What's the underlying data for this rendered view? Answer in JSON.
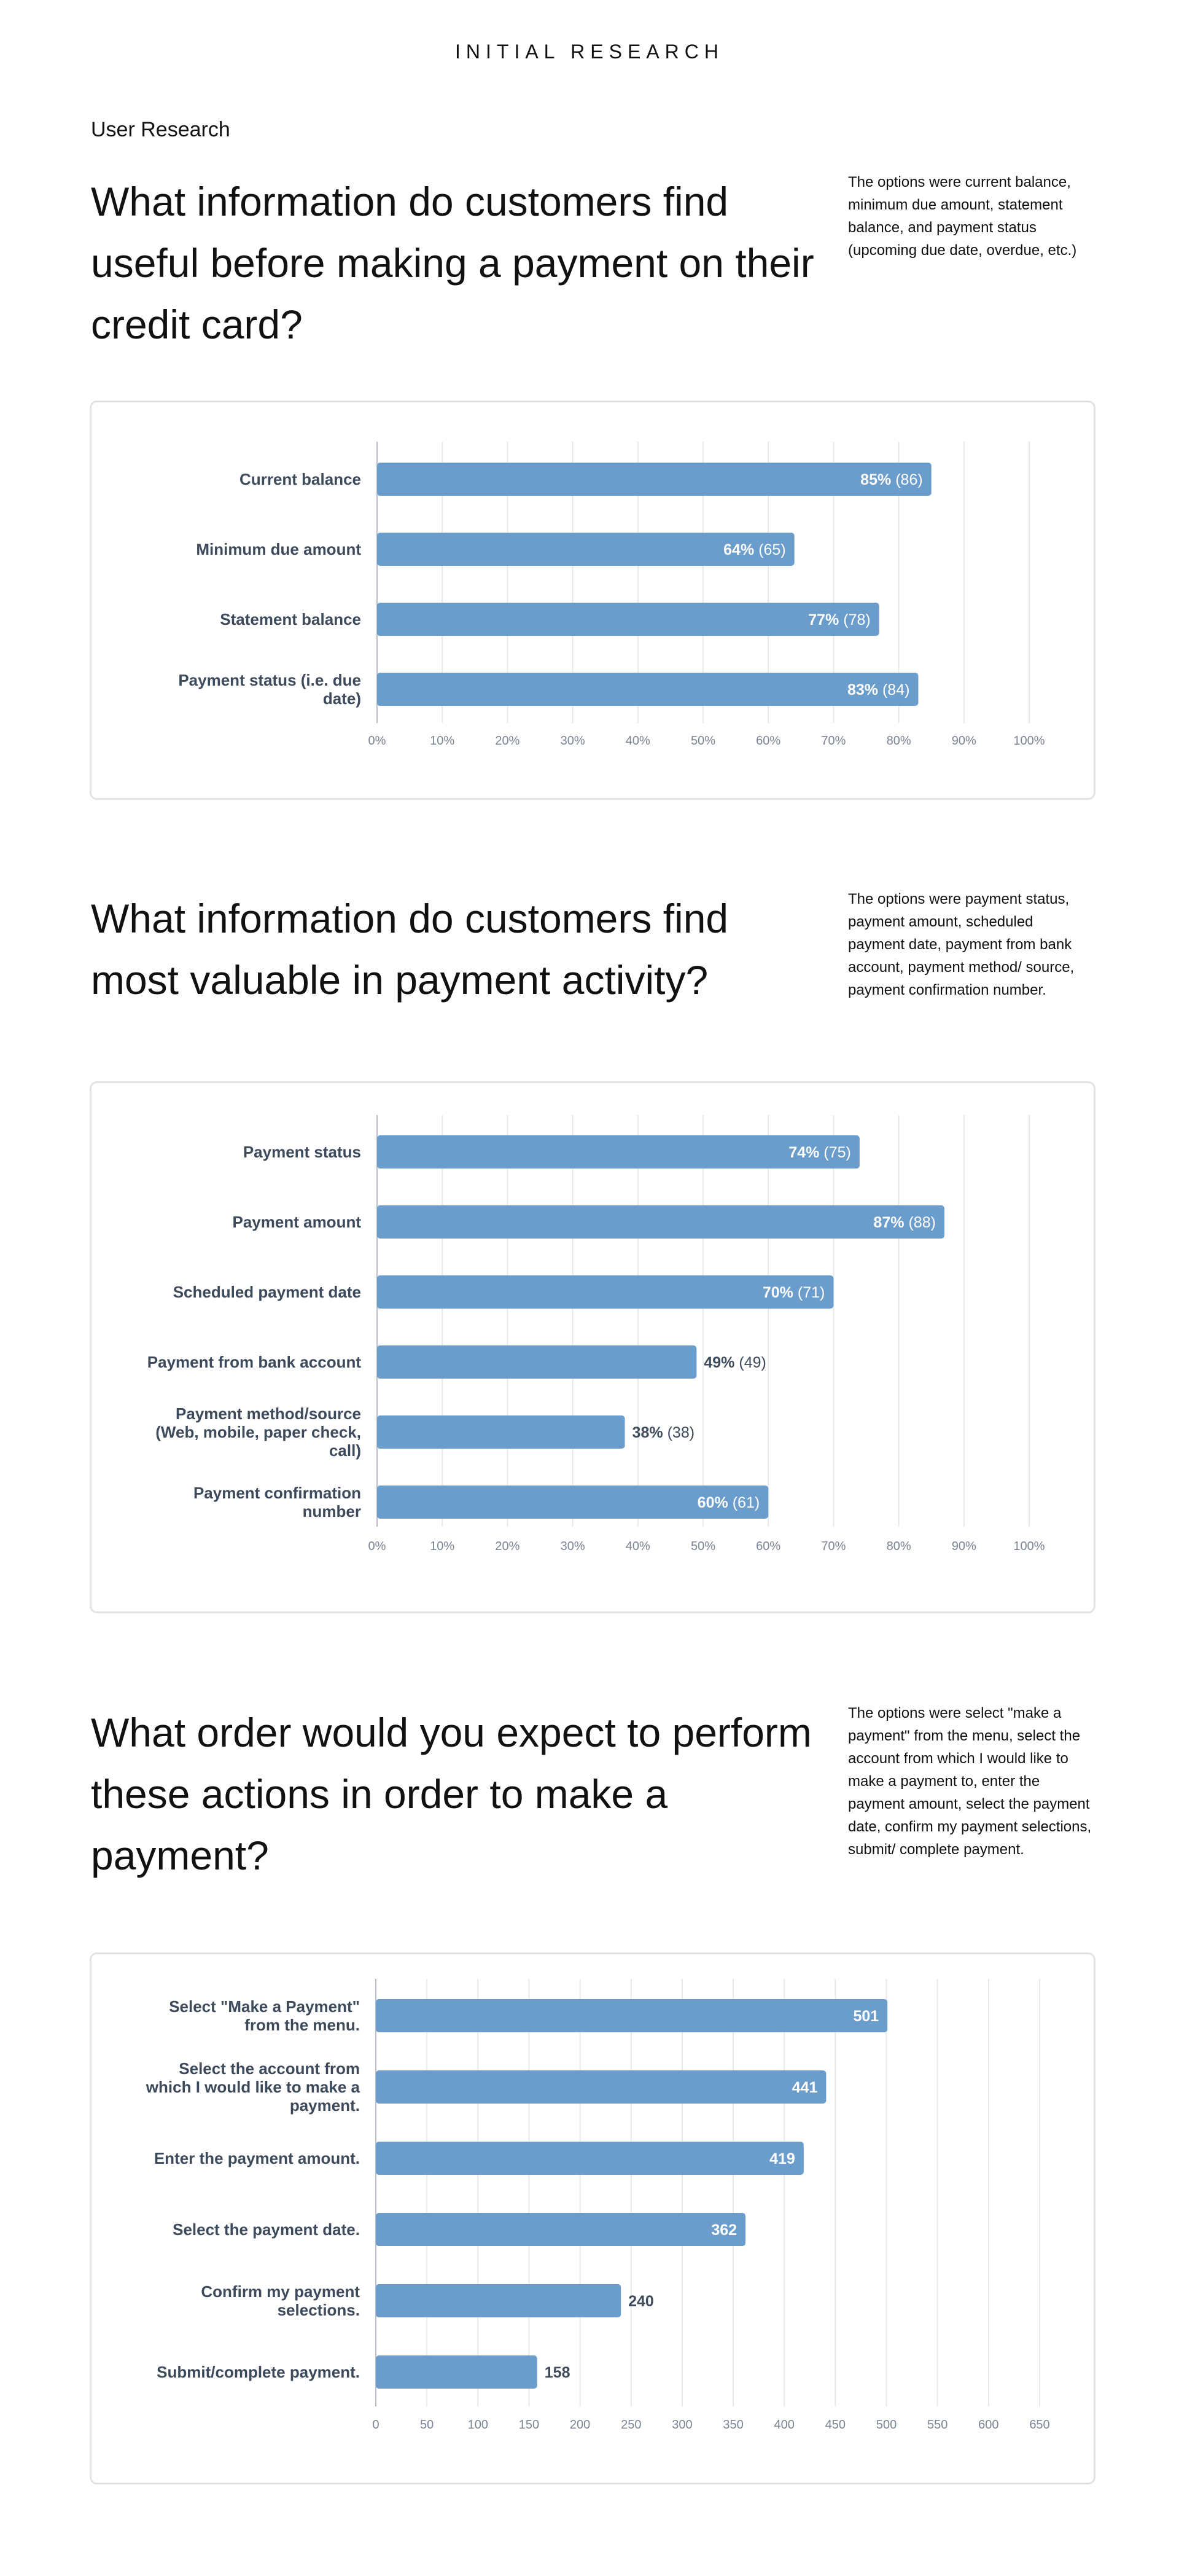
{
  "header": {
    "title": "INITIAL RESEARCH"
  },
  "section_label": "User Research",
  "questions": [
    {
      "title": "What information do customers find useful before making a payment on their credit card?",
      "note": "The options were current balance, minimum due amount, statement balance, and payment status (upcoming due date, overdue, etc.)"
    },
    {
      "title": "What information do customers find most valuable in payment activity?",
      "note": "The options were payment status, payment amount, scheduled payment date, payment from bank account, payment method/ source, payment confirmation number."
    },
    {
      "title": "What order would you expect to perform these actions in order to make a payment?",
      "note": "The options were select \"make a payment\" from the menu, select the account from which I would like to make a payment to, enter the payment amount, select the payment date, confirm my payment selections, submit/ complete payment."
    }
  ],
  "colors": {
    "bar": "#6a9dcc",
    "grid": "#e6e8eb",
    "axis": "#b9bec6",
    "label": "#3d4a5c",
    "tick": "#7b8494"
  },
  "chart_data": [
    {
      "type": "bar",
      "orientation": "horizontal",
      "categories": [
        [
          "Current balance"
        ],
        [
          "Minimum due amount"
        ],
        [
          "Statement balance"
        ],
        [
          "Payment status (i.e. due",
          "date)"
        ]
      ],
      "values": [
        85,
        64,
        77,
        83
      ],
      "counts": [
        86,
        65,
        78,
        84
      ],
      "value_labels": [
        "85%",
        "64%",
        "77%",
        "83%"
      ],
      "count_labels": [
        "(86)",
        "(65)",
        "(78)",
        "(84)"
      ],
      "xlim": [
        0,
        100
      ],
      "ticks": [
        0,
        10,
        20,
        30,
        40,
        50,
        60,
        70,
        80,
        90,
        100
      ],
      "tick_labels": [
        "0%",
        "10%",
        "20%",
        "30%",
        "40%",
        "50%",
        "60%",
        "70%",
        "80%",
        "90%",
        "100%"
      ],
      "grid": true
    },
    {
      "type": "bar",
      "orientation": "horizontal",
      "categories": [
        [
          "Payment status"
        ],
        [
          "Payment amount"
        ],
        [
          "Scheduled payment date"
        ],
        [
          "Payment from bank account"
        ],
        [
          "Payment method/source",
          "(Web, mobile, paper check,",
          "call)"
        ],
        [
          "Payment confirmation",
          "number"
        ]
      ],
      "values": [
        74,
        87,
        70,
        49,
        38,
        60
      ],
      "counts": [
        75,
        88,
        71,
        49,
        38,
        61
      ],
      "value_labels": [
        "74%",
        "87%",
        "70%",
        "49%",
        "38%",
        "60%"
      ],
      "count_labels": [
        "(75)",
        "(88)",
        "(71)",
        "(49)",
        "(38)",
        "(61)"
      ],
      "xlim": [
        0,
        100
      ],
      "ticks": [
        0,
        10,
        20,
        30,
        40,
        50,
        60,
        70,
        80,
        90,
        100
      ],
      "tick_labels": [
        "0%",
        "10%",
        "20%",
        "30%",
        "40%",
        "50%",
        "60%",
        "70%",
        "80%",
        "90%",
        "100%"
      ],
      "grid": true
    },
    {
      "type": "bar",
      "orientation": "horizontal",
      "categories": [
        [
          "Select \"Make a Payment\"",
          "from the menu."
        ],
        [
          "Select the account from",
          "which I would like to make a",
          "payment."
        ],
        [
          "Enter the payment amount."
        ],
        [
          "Select the payment date."
        ],
        [
          "Confirm my payment",
          "selections."
        ],
        [
          "Submit/complete payment."
        ]
      ],
      "values": [
        501,
        441,
        419,
        362,
        240,
        158
      ],
      "value_labels": [
        "501",
        "441",
        "419",
        "362",
        "240",
        "158"
      ],
      "xlim": [
        0,
        650
      ],
      "ticks": [
        0,
        50,
        100,
        150,
        200,
        250,
        300,
        350,
        400,
        450,
        500,
        550,
        600,
        650
      ],
      "tick_labels": [
        "0",
        "50",
        "100",
        "150",
        "200",
        "250",
        "300",
        "350",
        "400",
        "450",
        "500",
        "550",
        "600",
        "650"
      ],
      "grid": true
    }
  ]
}
